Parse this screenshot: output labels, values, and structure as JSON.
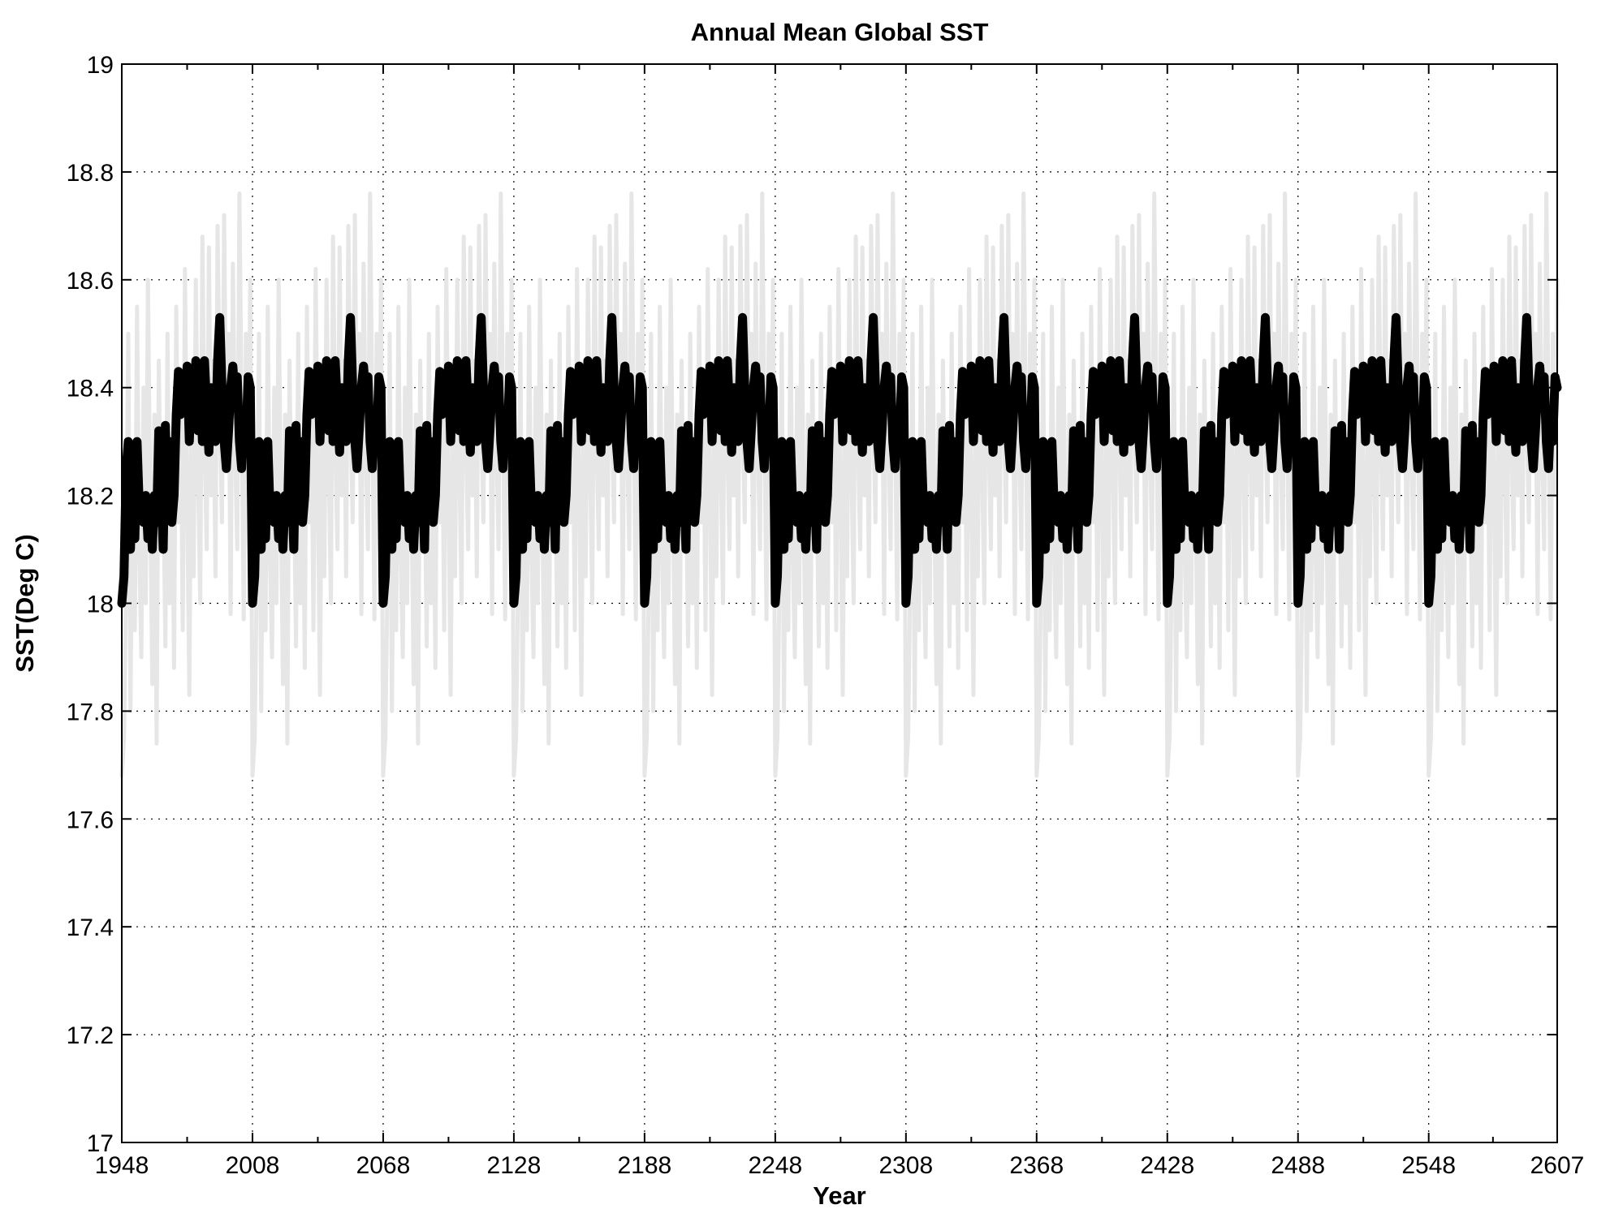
{
  "chart_data": {
    "type": "line",
    "title": "Annual Mean Global SST",
    "xlabel": "Year",
    "ylabel": "SST(Deg C)",
    "xlim": [
      1948,
      2607
    ],
    "ylim": [
      17,
      19
    ],
    "grid": true,
    "x_ticks": [
      1948,
      2008,
      2068,
      2128,
      2188,
      2248,
      2308,
      2368,
      2428,
      2488,
      2548,
      2607
    ],
    "y_ticks": [
      17,
      17.2,
      17.4,
      17.6,
      17.8,
      18,
      18.2,
      18.4,
      18.6,
      18.8,
      19
    ],
    "y_tick_labels": [
      "17",
      "17.2",
      "17.4",
      "17.6",
      "17.8",
      "18",
      "18.2",
      "18.4",
      "18.6",
      "18.8",
      "19"
    ],
    "x_tick_labels": [
      "1948",
      "2008",
      "2068",
      "2128",
      "2188",
      "2248",
      "2308",
      "2368",
      "2428",
      "2488",
      "2548",
      "2607"
    ],
    "series": [
      {
        "role": "annual",
        "color": "#e6e6e6",
        "period": 60,
        "values": [
          17.68,
          17.75,
          18.05,
          18.5,
          17.8,
          18.3,
          17.95,
          18.55,
          18.1,
          17.9,
          18.4,
          18.0,
          18.6,
          18.2,
          17.85,
          18.35,
          17.74,
          18.45,
          18.1,
          18.25,
          17.92,
          18.5,
          18.0,
          18.3,
          17.88,
          18.55,
          18.15,
          18.4,
          17.95,
          18.62,
          18.2,
          17.83,
          18.42,
          18.05,
          18.6,
          18.25,
          18.0,
          18.68,
          18.3,
          18.1,
          18.66,
          18.2,
          18.45,
          18.05,
          18.7,
          18.35,
          18.15,
          18.72,
          18.25,
          18.5,
          17.98,
          18.63,
          18.3,
          18.1,
          18.76,
          18.35,
          17.97,
          18.5,
          18.2,
          18.6
        ]
      },
      {
        "role": "smoothed",
        "color": "#000000",
        "period": 60,
        "values": [
          18.0,
          18.05,
          18.25,
          18.3,
          18.1,
          18.28,
          18.12,
          18.3,
          18.18,
          18.2,
          18.15,
          18.2,
          18.12,
          18.18,
          18.1,
          18.2,
          18.15,
          18.32,
          18.22,
          18.1,
          18.33,
          18.18,
          18.3,
          18.15,
          18.2,
          18.35,
          18.43,
          18.35,
          18.42,
          18.38,
          18.44,
          18.3,
          18.42,
          18.36,
          18.45,
          18.32,
          18.44,
          18.3,
          18.45,
          18.36,
          18.28,
          18.4,
          18.34,
          18.3,
          18.45,
          18.53,
          18.4,
          18.3,
          18.25,
          18.32,
          18.4,
          18.44,
          18.38,
          18.42,
          18.3,
          18.25,
          18.35,
          18.3,
          18.42,
          18.4
        ]
      }
    ]
  }
}
